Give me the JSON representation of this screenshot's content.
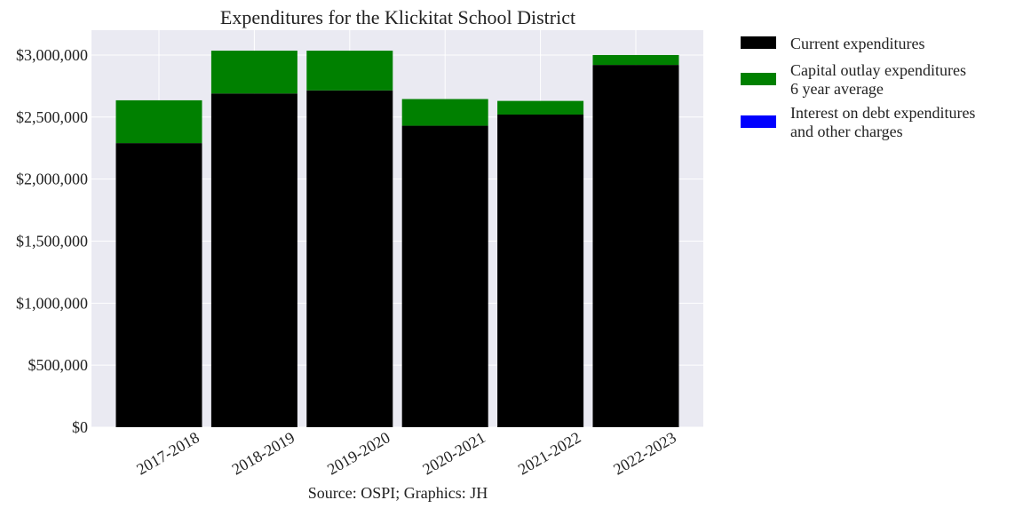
{
  "chart_data": {
    "type": "bar",
    "stacked": true,
    "title": "Expenditures for the Klickitat School District",
    "caption": "Source: OSPI; Graphics: JH",
    "xlabel": "",
    "ylabel": "",
    "categories": [
      "2017-2018",
      "2018-2019",
      "2019-2020",
      "2020-2021",
      "2021-2022",
      "2022-2023"
    ],
    "ylim": [
      0,
      3200000
    ],
    "yticks": [
      0,
      500000,
      1000000,
      1500000,
      2000000,
      2500000,
      3000000
    ],
    "ytick_labels": [
      "$0",
      "$500,000",
      "$1,000,000",
      "$1,500,000",
      "$2,000,000",
      "$2,500,000",
      "$3,000,000"
    ],
    "grid": true,
    "legend_position": "outside-right-top",
    "series": [
      {
        "name": "Current expenditures",
        "color": "#000000",
        "values": [
          2290000,
          2690000,
          2715000,
          2430000,
          2520000,
          2920000
        ]
      },
      {
        "name": "Capital outlay expenditures\n6 year average",
        "color": "#008000",
        "values": [
          345000,
          345000,
          320000,
          215000,
          110000,
          80000
        ]
      },
      {
        "name": "Interest on debt expenditures\nand other charges",
        "color": "#0000ff",
        "values": [
          0,
          0,
          0,
          0,
          0,
          0
        ]
      }
    ]
  }
}
